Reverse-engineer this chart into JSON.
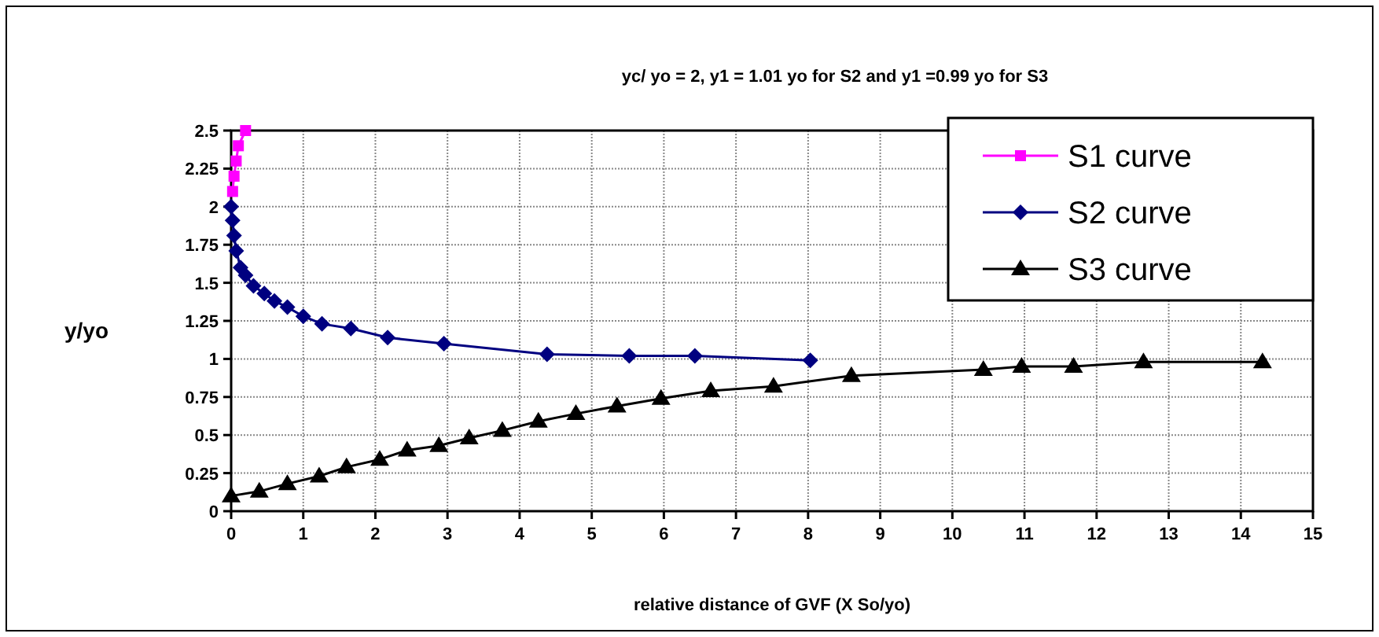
{
  "chart_data": {
    "type": "line",
    "title": "yc/ yo = 2, y1 = 1.01 yo for S2 and y1 =0.99 yo for S3",
    "xlabel": "relative distance of GVF (X So/yo)",
    "ylabel": "y/yo",
    "xlim": [
      0,
      15
    ],
    "xticks": [
      0,
      1,
      2,
      3,
      4,
      5,
      6,
      7,
      8,
      9,
      10,
      11,
      12,
      13,
      14,
      15
    ],
    "ylim": [
      0,
      2.5
    ],
    "yticks": [
      0,
      0.25,
      0.5,
      0.75,
      1,
      1.25,
      1.5,
      1.75,
      2,
      2.25,
      2.5
    ],
    "grid": true,
    "legend": "top right",
    "line_style": "solid",
    "series": [
      {
        "name": "S1 curve",
        "color": "#ff00ff",
        "marker": "square",
        "x": [
          0.02,
          0.04,
          0.07,
          0.1,
          0.2
        ],
        "values": [
          2.1,
          2.2,
          2.3,
          2.4,
          2.5
        ]
      },
      {
        "name": "S2 curve",
        "color": "#000080",
        "marker": "diamond",
        "x": [
          0,
          0.02,
          0.04,
          0.07,
          0.13,
          0.2,
          0.31,
          0.46,
          0.6,
          0.78,
          1.0,
          1.26,
          1.66,
          2.17,
          2.95,
          4.38,
          5.52,
          6.43,
          8.03
        ],
        "values": [
          2.0,
          1.91,
          1.81,
          1.71,
          1.6,
          1.55,
          1.48,
          1.43,
          1.38,
          1.34,
          1.28,
          1.23,
          1.2,
          1.14,
          1.1,
          1.03,
          1.02,
          1.02,
          0.99
        ]
      },
      {
        "name": "S3 curve",
        "color": "#000000",
        "marker": "triangle",
        "x": [
          0,
          0.39,
          0.78,
          1.22,
          1.6,
          2.06,
          2.44,
          2.88,
          3.3,
          3.76,
          4.26,
          4.78,
          5.35,
          5.96,
          6.65,
          7.52,
          8.6,
          10.43,
          10.96,
          11.68,
          12.65,
          14.3
        ],
        "values": [
          0.1,
          0.13,
          0.18,
          0.23,
          0.29,
          0.34,
          0.4,
          0.43,
          0.48,
          0.53,
          0.59,
          0.64,
          0.69,
          0.74,
          0.79,
          0.82,
          0.89,
          0.93,
          0.95,
          0.95,
          0.98,
          0.98
        ]
      }
    ]
  }
}
